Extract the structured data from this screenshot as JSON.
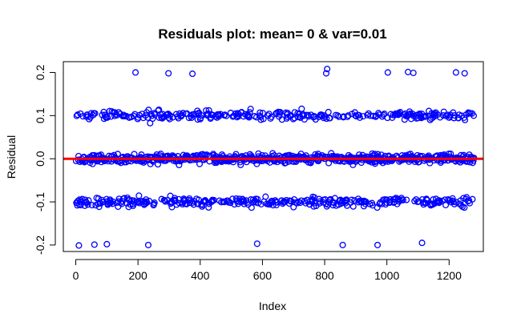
{
  "chart_data": {
    "type": "scatter",
    "title": "Residuals plot: mean= 0 & var=0.01",
    "xlabel": "Index",
    "ylabel": "Residual",
    "xlim": [
      -40,
      1310
    ],
    "ylim": [
      -0.215,
      0.225
    ],
    "xticks": [
      0,
      200,
      400,
      600,
      800,
      1000,
      1200
    ],
    "yticks": [
      -0.2,
      -0.1,
      0.0,
      0.1,
      0.2
    ],
    "xtick_labels": [
      "0",
      "200",
      "400",
      "600",
      "800",
      "1000",
      "1200"
    ],
    "ytick_labels": [
      "-0.2",
      "-0.1",
      "0.0",
      "0.1",
      "0.2"
    ],
    "grid": false,
    "legend": "none",
    "series": [
      {
        "marker": "open-circle",
        "color": "#0000ff",
        "n_points": 1280,
        "clusters": [
          {
            "center": 0.1,
            "spread": 0.005,
            "share": 0.245
          },
          {
            "center": 0.0,
            "spread": 0.005,
            "share": 0.49
          },
          {
            "center": -0.1,
            "spread": 0.005,
            "share": 0.245
          }
        ],
        "outliers": [
          {
            "x": 192,
            "y": 0.2
          },
          {
            "x": 298,
            "y": 0.198
          },
          {
            "x": 375,
            "y": 0.197
          },
          {
            "x": 805,
            "y": 0.198
          },
          {
            "x": 808,
            "y": 0.208
          },
          {
            "x": 1003,
            "y": 0.2
          },
          {
            "x": 1068,
            "y": 0.201
          },
          {
            "x": 1085,
            "y": 0.199
          },
          {
            "x": 1222,
            "y": 0.2
          },
          {
            "x": 1250,
            "y": 0.198
          },
          {
            "x": 10,
            "y": -0.201
          },
          {
            "x": 60,
            "y": -0.199
          },
          {
            "x": 100,
            "y": -0.198
          },
          {
            "x": 233,
            "y": -0.2
          },
          {
            "x": 583,
            "y": -0.197
          },
          {
            "x": 858,
            "y": -0.2
          },
          {
            "x": 970,
            "y": -0.2
          },
          {
            "x": 1113,
            "y": -0.195
          }
        ]
      }
    ],
    "reference_line": {
      "y": 0.0,
      "color": "#ff0000"
    }
  }
}
